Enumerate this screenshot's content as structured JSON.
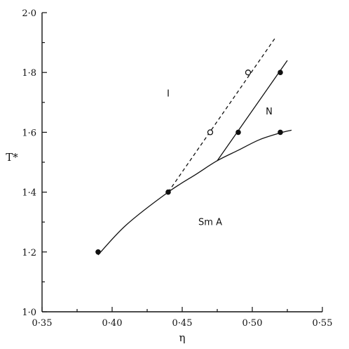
{
  "chart_data": {
    "type": "line",
    "title": "",
    "xlabel": "η",
    "ylabel": "T*",
    "xlim": [
      0.35,
      0.55
    ],
    "ylim": [
      1.0,
      2.0
    ],
    "x_ticks": [
      "0·35",
      "0·40",
      "0·45",
      "0·50",
      "0·55"
    ],
    "y_ticks": [
      "1·0",
      "1·2",
      "1·4",
      "1·6",
      "1·8",
      "2·0"
    ],
    "grid": false,
    "region_labels": [
      {
        "text": "I",
        "x": 0.44,
        "y": 1.72
      },
      {
        "text": "N",
        "x": 0.512,
        "y": 1.66
      },
      {
        "text": "Sm  A",
        "x": 0.47,
        "y": 1.29
      }
    ],
    "series": [
      {
        "style": "solid",
        "marker": "none",
        "points": [
          [
            0.39,
            1.19
          ],
          [
            0.41,
            1.29
          ],
          [
            0.44,
            1.4
          ],
          [
            0.46,
            1.46
          ],
          [
            0.475,
            1.505
          ],
          [
            0.49,
            1.54
          ],
          [
            0.505,
            1.575
          ],
          [
            0.52,
            1.598
          ],
          [
            0.528,
            1.607
          ]
        ]
      },
      {
        "style": "dashed",
        "marker": "none",
        "points": [
          [
            0.44,
            1.4
          ],
          [
            0.517,
            1.92
          ]
        ]
      },
      {
        "style": "solid",
        "marker": "none",
        "points": [
          [
            0.475,
            1.505
          ],
          [
            0.525,
            1.84
          ]
        ]
      },
      {
        "style": "markers",
        "marker": "filled",
        "points": [
          [
            0.39,
            1.2
          ],
          [
            0.44,
            1.4
          ],
          [
            0.49,
            1.6
          ],
          [
            0.52,
            1.8
          ],
          [
            0.52,
            1.6
          ]
        ]
      },
      {
        "style": "markers",
        "marker": "open",
        "points": [
          [
            0.47,
            1.6
          ],
          [
            0.497,
            1.8
          ]
        ]
      }
    ]
  }
}
